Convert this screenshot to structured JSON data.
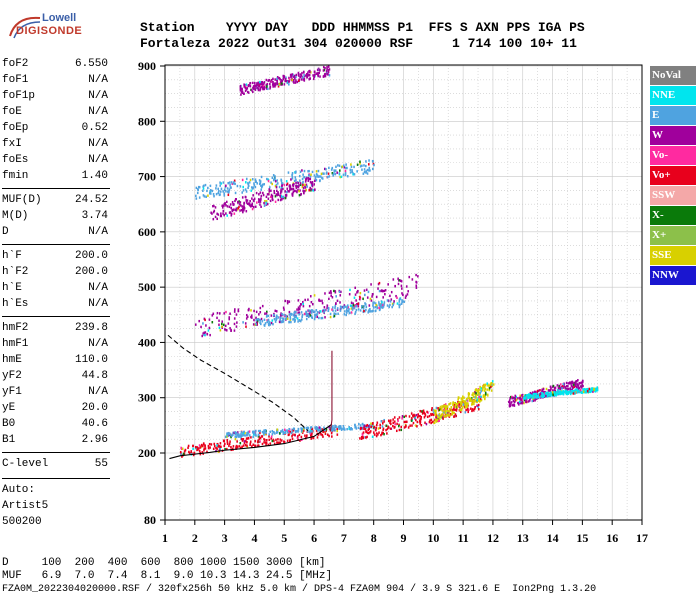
{
  "logo": {
    "line1": "Lowell",
    "line2": "DIGISONDE"
  },
  "header": {
    "labels": "Station    YYYY DAY   DDD HHMMSS P1  FFS S AXN PPS IGA PS",
    "values": "Fortaleza 2022 Out31 304 020000 RSF     1 714 100 10+ 11"
  },
  "parameters": [
    {
      "name": "foF2",
      "value": "6.550"
    },
    {
      "name": "foF1",
      "value": "N/A"
    },
    {
      "name": "foF1p",
      "value": "N/A"
    },
    {
      "name": "foE",
      "value": "N/A"
    },
    {
      "name": "foEp",
      "value": "0.52"
    },
    {
      "name": "fxI",
      "value": "N/A"
    },
    {
      "name": "foEs",
      "value": "N/A"
    },
    {
      "name": "fmin",
      "value": "1.40"
    },
    {
      "name": "MUF(D)",
      "value": "24.52"
    },
    {
      "name": "M(D)",
      "value": "3.74"
    },
    {
      "name": "D",
      "value": "N/A"
    },
    {
      "name": "h`F",
      "value": "200.0"
    },
    {
      "name": "h`F2",
      "value": "200.0"
    },
    {
      "name": "h`E",
      "value": "N/A"
    },
    {
      "name": "h`Es",
      "value": "N/A"
    },
    {
      "name": "hmF2",
      "value": "239.8"
    },
    {
      "name": "hmF1",
      "value": "N/A"
    },
    {
      "name": "hmE",
      "value": "110.0"
    },
    {
      "name": "yF2",
      "value": "44.8"
    },
    {
      "name": "yF1",
      "value": "N/A"
    },
    {
      "name": "yE",
      "value": "20.0"
    },
    {
      "name": "B0",
      "value": "40.6"
    },
    {
      "name": "B1",
      "value": "2.96"
    },
    {
      "name": "C-level",
      "value": "55"
    }
  ],
  "auto": {
    "label": "Auto:",
    "artist": "Artist5",
    "version": "500200"
  },
  "legend": [
    {
      "label": "NoVal",
      "color": "#808080"
    },
    {
      "label": "NNE",
      "color": "#00e5ee"
    },
    {
      "label": "E",
      "color": "#4fa3e0"
    },
    {
      "label": "W",
      "color": "#a0009c"
    },
    {
      "label": "Vo-",
      "color": "#ff2aa0"
    },
    {
      "label": "Vo+",
      "color": "#e8001c"
    },
    {
      "label": "SSW",
      "color": "#f4a8a8"
    },
    {
      "label": "X-",
      "color": "#0a7a0a"
    },
    {
      "label": "X+",
      "color": "#8cc04a"
    },
    {
      "label": "SSE",
      "color": "#d8d000"
    },
    {
      "label": "NNW",
      "color": "#1a16d0"
    }
  ],
  "footer": {
    "line1": "D     100  200  400  600  800 1000 1500 3000 [km]",
    "line2": "MUF   6.9  7.0  7.4  8.1  9.0 10.3 14.3 24.5 [MHz]",
    "line3": "FZA0M_2022304020000.RSF / 320fx256h 50 kHz 5.0 km / DPS-4 FZA0M 904 / 3.9 S 321.6 E  Ion2Png 1.3.20"
  },
  "chart_data": {
    "type": "scatter",
    "x_ticks": [
      1,
      2,
      3,
      4,
      5,
      6,
      7,
      8,
      9,
      10,
      11,
      12,
      13,
      14,
      15,
      16,
      17
    ],
    "y_ticks": [
      80,
      200,
      300,
      400,
      500,
      600,
      700,
      800,
      900
    ],
    "xlim": [
      1,
      17
    ],
    "grid": true,
    "clusters": [
      {
        "x": [
          1.5,
          6.8
        ],
        "y": [
          195,
          250
        ],
        "color": "#e8001c"
      },
      {
        "x": [
          3,
          8
        ],
        "y": [
          230,
          255
        ],
        "color": "#4fa3e0"
      },
      {
        "x": [
          7.5,
          11.5
        ],
        "y": [
          225,
          300
        ],
        "color": "#e8001c"
      },
      {
        "x": [
          10,
          12
        ],
        "y": [
          255,
          330
        ],
        "color": "#d8d000"
      },
      {
        "x": [
          12.5,
          15
        ],
        "y": [
          285,
          335
        ],
        "color": "#a0009c"
      },
      {
        "x": [
          13,
          15.5
        ],
        "y": [
          300,
          320
        ],
        "color": "#00e5ee"
      },
      {
        "x": [
          2,
          9.5
        ],
        "y": [
          410,
          520
        ],
        "color": "#a0009c"
      },
      {
        "x": [
          4,
          9
        ],
        "y": [
          430,
          480
        ],
        "color": "#4fa3e0"
      },
      {
        "x": [
          2,
          8
        ],
        "y": [
          660,
          730
        ],
        "color": "#4fa3e0"
      },
      {
        "x": [
          2.5,
          6
        ],
        "y": [
          620,
          700
        ],
        "color": "#a0009c"
      },
      {
        "x": [
          3.5,
          6.5
        ],
        "y": [
          850,
          900
        ],
        "color": "#a0009c"
      }
    ],
    "traces": [
      {
        "name": "",
        "style": "solid",
        "x": [
          1.15,
          1.5,
          2,
          2.5,
          3,
          4,
          5,
          6,
          6.6
        ],
        "y": [
          190,
          195,
          198,
          201,
          205,
          210,
          217,
          230,
          252
        ]
      },
      {
        "name": "",
        "style": "dashed",
        "x": [
          1.1,
          1.6,
          2.2,
          3,
          3.8,
          4.6,
          5.3,
          5.8
        ],
        "y": [
          413,
          390,
          368,
          344,
          318,
          292,
          265,
          240
        ]
      },
      {
        "name": "",
        "style": "solid",
        "x": [
          6.55,
          6.6,
          6.6,
          6.6
        ],
        "y": [
          240,
          260,
          320,
          385
        ]
      }
    ]
  }
}
